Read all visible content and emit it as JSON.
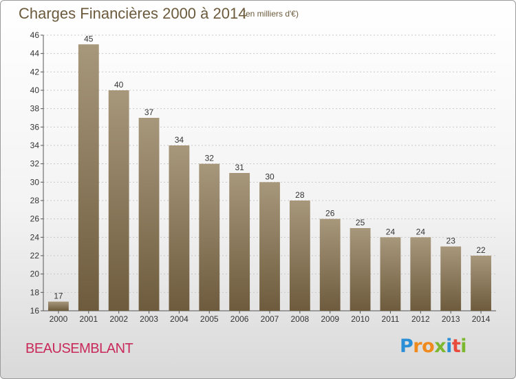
{
  "title": "Charges Financières 2000 à 2014",
  "subtitle": "(en milliers d'€)",
  "city": "BEAUSEMBLANT",
  "logo": {
    "letters": [
      "P",
      "r",
      "o",
      "x",
      "i",
      "t",
      "i"
    ],
    "colors": [
      "#2a8fd6",
      "#f08a1c",
      "#f08a1c",
      "#7cb82f",
      "#2a8fd6",
      "#e84a3c",
      "#7cb82f"
    ]
  },
  "colors": {
    "bar_top": "#a7977b",
    "bar_bottom": "#6e5b3d",
    "text": "#333333",
    "grid": "#c8c8c8"
  },
  "chart_data": {
    "type": "bar",
    "categories": [
      "2000",
      "2001",
      "2002",
      "2003",
      "2004",
      "2005",
      "2006",
      "2007",
      "2008",
      "2009",
      "2010",
      "2011",
      "2012",
      "2013",
      "2014"
    ],
    "values": [
      17,
      45,
      40,
      37,
      34,
      32,
      31,
      30,
      28,
      26,
      25,
      24,
      24,
      23,
      22
    ],
    "ylim": [
      16,
      46
    ],
    "yticks": [
      16,
      18,
      20,
      22,
      24,
      26,
      28,
      30,
      32,
      34,
      36,
      38,
      40,
      42,
      44,
      46
    ],
    "data_labels": true,
    "grid": true
  }
}
